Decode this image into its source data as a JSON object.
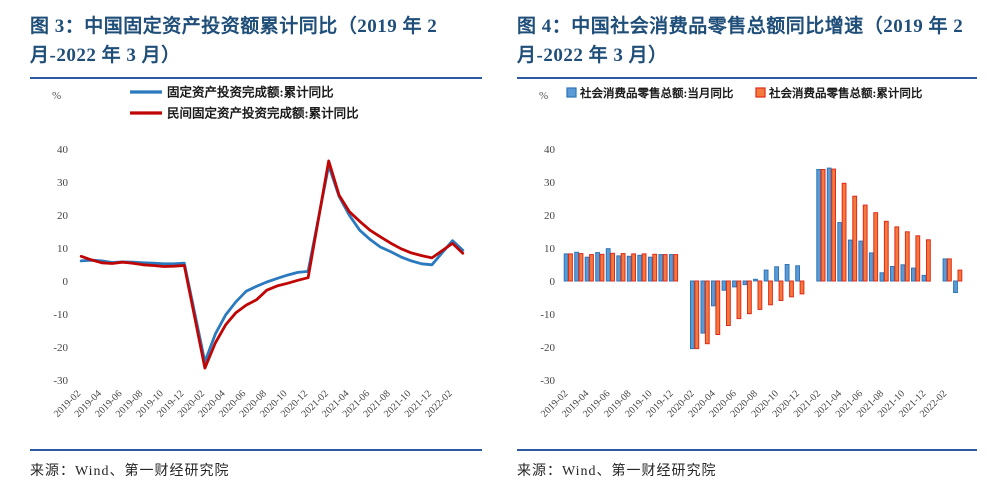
{
  "accent_colors": {
    "title_navy": "#1F4E79",
    "divider_blue": "#2B5AA0",
    "line_blue": "#2B79BE",
    "line_red": "#C00505",
    "bar_blue_fill": "#5B9BD5",
    "bar_blue_stroke": "#2E75B6",
    "bar_orange_fill": "#F4793B",
    "bar_red_stroke": "#E02A1D"
  },
  "figures": [
    {
      "title": "图 3：中国固定资产投资额累计同比（2019 年 2 月-2022 年 3 月）",
      "source": "来源：Wind、第一财经研究院"
    },
    {
      "title": "图 4：中国社会消费品零售总额同比增速（2019 年 2 月-2022 年 3 月）",
      "source": "来源：Wind、第一财经研究院"
    }
  ],
  "chart_data": [
    {
      "type": "line",
      "title": "中国固定资产投资额累计同比（2019年2月-2022年3月）",
      "unit": "%",
      "grid": false,
      "legend_position": "top",
      "ylim": [
        -30,
        45
      ],
      "yticks": [
        40,
        30,
        20,
        10,
        0,
        -10,
        -20,
        -30
      ],
      "x_tick_labels": [
        "2019-02",
        "2019-04",
        "2019-06",
        "2019-08",
        "2019-10",
        "2019-12",
        "2020-02",
        "2020-04",
        "2020-06",
        "2020-08",
        "2020-10",
        "2020-12",
        "2021-02",
        "2021-04",
        "2021-06",
        "2021-08",
        "2021-10",
        "2021-12",
        "2022-02"
      ],
      "categories": [
        "2019-02",
        "2019-03",
        "2019-04",
        "2019-05",
        "2019-06",
        "2019-07",
        "2019-08",
        "2019-09",
        "2019-10",
        "2019-11",
        "2019-12",
        "2020-01",
        "2020-02",
        "2020-03",
        "2020-04",
        "2020-05",
        "2020-06",
        "2020-07",
        "2020-08",
        "2020-09",
        "2020-10",
        "2020-11",
        "2020-12",
        "2021-01",
        "2021-02",
        "2021-03",
        "2021-04",
        "2021-05",
        "2021-06",
        "2021-07",
        "2021-08",
        "2021-09",
        "2021-10",
        "2021-11",
        "2021-12",
        "2022-01",
        "2022-02",
        "2022-03"
      ],
      "series": [
        {
          "name": "固定资产投资完成额:累计同比",
          "color": "#2B79BE",
          "values": [
            6.1,
            6.3,
            6.1,
            5.6,
            5.8,
            5.7,
            5.5,
            5.4,
            5.2,
            5.2,
            5.4,
            null,
            -24.5,
            -16.1,
            -10.3,
            -6.3,
            -3.1,
            -1.6,
            -0.3,
            0.8,
            1.8,
            2.6,
            2.9,
            null,
            35.0,
            25.6,
            19.9,
            15.4,
            12.6,
            10.3,
            8.9,
            7.3,
            6.1,
            5.2,
            4.9,
            null,
            12.2,
            9.3
          ]
        },
        {
          "name": "民间固定资产投资完成额:累计同比",
          "color": "#C00505",
          "values": [
            7.5,
            6.4,
            5.5,
            5.3,
            5.7,
            5.4,
            4.9,
            4.7,
            4.4,
            4.5,
            4.7,
            null,
            -26.4,
            -18.8,
            -13.3,
            -9.6,
            -7.3,
            -5.7,
            -2.8,
            -1.5,
            -0.7,
            0.2,
            1.0,
            null,
            36.4,
            26.0,
            21.0,
            18.1,
            15.4,
            13.4,
            11.5,
            9.8,
            8.5,
            7.7,
            7.0,
            null,
            11.4,
            8.4
          ]
        }
      ]
    },
    {
      "type": "bar",
      "title": "中国社会消费品零售总额同比增速（2019年2月-2022年3月）",
      "unit": "%",
      "grid": false,
      "legend_position": "top",
      "ylim": [
        -30,
        45
      ],
      "yticks": [
        40,
        30,
        20,
        10,
        0,
        -10,
        -20,
        -30
      ],
      "x_tick_labels": [
        "2019-02",
        "2019-04",
        "2019-06",
        "2019-08",
        "2019-10",
        "2019-12",
        "2020-02",
        "2020-04",
        "2020-06",
        "2020-08",
        "2020-10",
        "2020-12",
        "2021-02",
        "2021-04",
        "2021-06",
        "2021-08",
        "2021-10",
        "2021-12",
        "2022-02"
      ],
      "categories": [
        "2019-02",
        "2019-03",
        "2019-04",
        "2019-05",
        "2019-06",
        "2019-07",
        "2019-08",
        "2019-09",
        "2019-10",
        "2019-11",
        "2019-12",
        "2020-01",
        "2020-02",
        "2020-03",
        "2020-04",
        "2020-05",
        "2020-06",
        "2020-07",
        "2020-08",
        "2020-09",
        "2020-10",
        "2020-11",
        "2020-12",
        "2021-01",
        "2021-02",
        "2021-03",
        "2021-04",
        "2021-05",
        "2021-06",
        "2021-07",
        "2021-08",
        "2021-09",
        "2021-10",
        "2021-11",
        "2021-12",
        "2022-01",
        "2022-02",
        "2022-03"
      ],
      "series": [
        {
          "name": "社会消费品零售总额:当月同比",
          "fill": "#5B9BD5",
          "stroke": "#2E75B6",
          "values": [
            8.2,
            8.7,
            7.2,
            8.6,
            9.8,
            7.6,
            7.5,
            7.8,
            7.2,
            8.0,
            8.0,
            null,
            -20.5,
            -15.8,
            -7.5,
            -2.8,
            -1.8,
            -1.1,
            0.5,
            3.3,
            4.3,
            5.0,
            4.6,
            null,
            33.8,
            34.2,
            17.7,
            12.4,
            12.1,
            8.5,
            2.5,
            4.4,
            4.9,
            3.9,
            1.7,
            null,
            6.7,
            -3.5
          ]
        },
        {
          "name": "社会消费品零售总额:累计同比",
          "fill": "#F4793B",
          "stroke": "#E02A1D",
          "values": [
            8.2,
            8.3,
            8.0,
            8.1,
            8.4,
            8.3,
            8.2,
            8.2,
            8.1,
            8.0,
            8.0,
            null,
            -20.5,
            -19.0,
            -16.2,
            -13.5,
            -11.4,
            -9.9,
            -8.6,
            -7.2,
            -5.9,
            -4.8,
            -3.9,
            null,
            33.8,
            33.9,
            29.6,
            25.7,
            23.0,
            20.7,
            18.1,
            16.4,
            14.9,
            13.7,
            12.5,
            null,
            6.7,
            3.3
          ]
        }
      ]
    }
  ]
}
